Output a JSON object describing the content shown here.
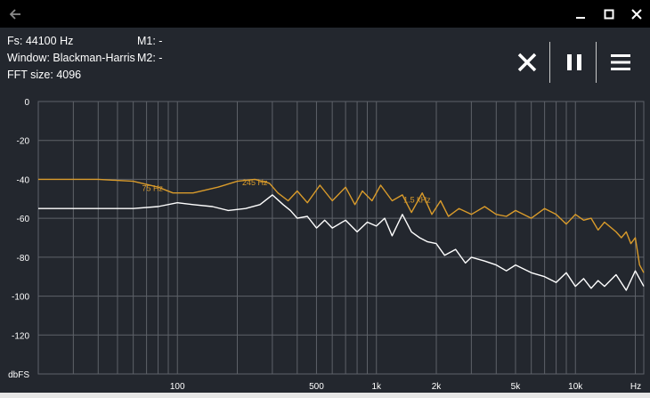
{
  "window": {
    "back_icon": "arrow-left-icon",
    "minimize_icon": "minimize-icon",
    "maximize_icon": "maximize-icon",
    "close_icon": "close-icon"
  },
  "info": {
    "fs": "Fs: 44100 Hz",
    "window": "Window: Blackman-Harris",
    "fft": "FFT size: 4096",
    "m1": "M1: -",
    "m2": "M2: -"
  },
  "toolbar": {
    "clear_icon": "close-x-icon",
    "pause_icon": "pause-icon",
    "menu_icon": "hamburger-menu-icon"
  },
  "colors": {
    "background": "#23272e",
    "grid": "#5e6269",
    "orange": "#d99b2b",
    "white": "#ffffff"
  },
  "chart_data": {
    "type": "line",
    "x_scale": "log",
    "xlim": [
      20,
      22050
    ],
    "ylim": [
      -140,
      0
    ],
    "y_ticks": [
      {
        "value": 0,
        "label": "0"
      },
      {
        "value": -20,
        "label": "-20"
      },
      {
        "value": -40,
        "label": "-40"
      },
      {
        "value": -60,
        "label": "-60"
      },
      {
        "value": -80,
        "label": "-80"
      },
      {
        "value": -100,
        "label": "-100"
      },
      {
        "value": -120,
        "label": "-120"
      }
    ],
    "y_unit": "dbFS",
    "x_ticks": [
      {
        "value": 100,
        "label": "100"
      },
      {
        "value": 500,
        "label": "500"
      },
      {
        "value": 1000,
        "label": "1k"
      },
      {
        "value": 2000,
        "label": "2k"
      },
      {
        "value": 5000,
        "label": "5k"
      },
      {
        "value": 10000,
        "label": "10k"
      }
    ],
    "x_unit": "Hz",
    "series": [
      {
        "color": "#d99b2b",
        "x": [
          20,
          40,
          60,
          80,
          95,
          120,
          160,
          200,
          245,
          290,
          320,
          360,
          400,
          450,
          520,
          600,
          700,
          780,
          850,
          950,
          1050,
          1200,
          1350,
          1500,
          1700,
          1900,
          2100,
          2300,
          2600,
          3000,
          3500,
          4000,
          4500,
          5000,
          6000,
          7000,
          8000,
          9000,
          10000,
          11000,
          12000,
          13000,
          14000,
          16000,
          17000,
          18000,
          19000,
          20000,
          21000,
          22050
        ],
        "y": [
          -40,
          -40,
          -41,
          -44,
          -47,
          -47,
          -44,
          -41,
          -40,
          -42,
          -47,
          -51,
          -46,
          -52,
          -43,
          -51,
          -44,
          -53,
          -46,
          -51,
          -43,
          -51,
          -48,
          -57,
          -47,
          -58,
          -51,
          -59,
          -55,
          -58,
          -54,
          -58,
          -59,
          -56,
          -60,
          -55,
          -58,
          -63,
          -58,
          -61,
          -60,
          -66,
          -62,
          -67,
          -70,
          -67,
          -73,
          -70,
          -84,
          -88
        ]
      },
      {
        "color": "#ffffff",
        "x": [
          20,
          40,
          60,
          80,
          100,
          120,
          150,
          180,
          220,
          260,
          300,
          340,
          370,
          400,
          450,
          500,
          550,
          600,
          700,
          800,
          900,
          1000,
          1100,
          1200,
          1350,
          1500,
          1650,
          1800,
          2000,
          2200,
          2500,
          2800,
          3000,
          3500,
          4000,
          4500,
          5000,
          6000,
          7000,
          8000,
          9000,
          10000,
          11000,
          12000,
          13000,
          14000,
          16000,
          18000,
          20000,
          22050
        ],
        "y": [
          -55,
          -55,
          -55,
          -54,
          -52,
          -53,
          -54,
          -56,
          -55,
          -53,
          -48,
          -53,
          -56,
          -60,
          -59,
          -65,
          -61,
          -65,
          -61,
          -67,
          -62,
          -64,
          -60,
          -69,
          -58,
          -67,
          -70,
          -72,
          -73,
          -79,
          -76,
          -83,
          -80,
          -82,
          -84,
          -87,
          -84,
          -88,
          -90,
          -93,
          -88,
          -95,
          -91,
          -96,
          -92,
          -95,
          -89,
          -97,
          -87,
          -95
        ]
      }
    ],
    "peak_labels": [
      {
        "x": 75,
        "y": -46,
        "text": "75 Hz"
      },
      {
        "x": 245,
        "y": -43,
        "text": "245 Hz"
      },
      {
        "x": 1600,
        "y": -52,
        "text": "1.5 kHz"
      }
    ]
  }
}
